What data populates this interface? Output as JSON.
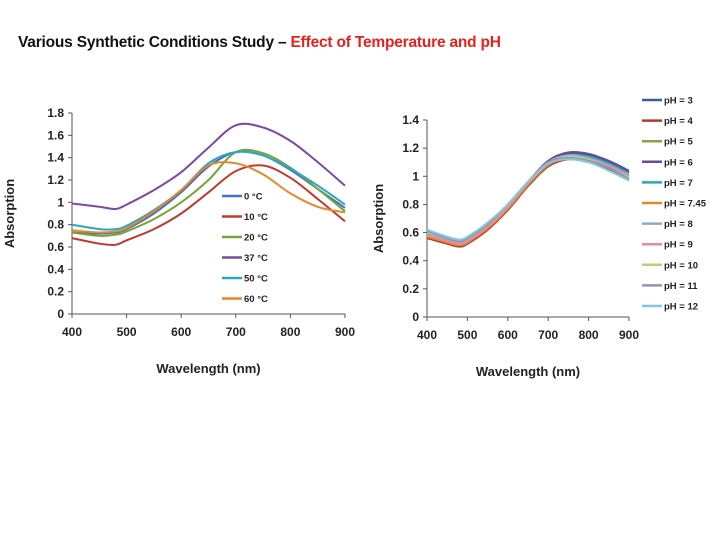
{
  "slide": {
    "title_main": "Various Synthetic Conditions Study – ",
    "title_accent": "Effect of Temperature and pH",
    "accent_color": "#e8201c"
  },
  "chart_data": [
    {
      "type": "line",
      "title": "",
      "xlabel": "Wavelength (nm)",
      "ylabel": "Absorption",
      "xlim": [
        400,
        900
      ],
      "ylim": [
        0,
        1.8
      ],
      "xticks": [
        400,
        500,
        600,
        700,
        800,
        900
      ],
      "yticks": [
        0,
        0.2,
        0.4,
        0.6,
        0.8,
        1,
        1.2,
        1.4,
        1.6,
        1.8
      ],
      "ytick_labels": [
        "0",
        "0.2",
        "0.4",
        "0.6",
        "0.8",
        "1",
        "1.2",
        "1.4",
        "1.6",
        "1.8"
      ],
      "grid": false,
      "legend_position": "center-right",
      "x": [
        400,
        450,
        480,
        500,
        550,
        600,
        650,
        700,
        750,
        800,
        850,
        900
      ],
      "series": [
        {
          "name": "0 °C",
          "color": "#4472c4",
          "values": [
            0.73,
            0.72,
            0.73,
            0.76,
            0.9,
            1.09,
            1.32,
            1.45,
            1.42,
            1.29,
            1.12,
            0.95
          ]
        },
        {
          "name": "10 °C",
          "color": "#c0392b",
          "values": [
            0.68,
            0.63,
            0.62,
            0.66,
            0.76,
            0.9,
            1.09,
            1.28,
            1.33,
            1.22,
            1.03,
            0.83
          ]
        },
        {
          "name": "20 °C",
          "color": "#77a33a",
          "values": [
            0.73,
            0.7,
            0.71,
            0.74,
            0.85,
            1.0,
            1.2,
            1.45,
            1.44,
            1.31,
            1.12,
            0.92
          ]
        },
        {
          "name": "37 °C",
          "color": "#7b4a9e",
          "values": [
            0.99,
            0.96,
            0.94,
            0.98,
            1.11,
            1.27,
            1.49,
            1.69,
            1.67,
            1.55,
            1.36,
            1.15
          ]
        },
        {
          "name": "50 °C",
          "color": "#2aa5c2",
          "values": [
            0.8,
            0.76,
            0.76,
            0.79,
            0.93,
            1.11,
            1.35,
            1.45,
            1.42,
            1.3,
            1.15,
            0.98
          ]
        },
        {
          "name": "60 °C",
          "color": "#e8862a",
          "values": [
            0.75,
            0.73,
            0.74,
            0.77,
            0.92,
            1.11,
            1.33,
            1.35,
            1.25,
            1.08,
            0.96,
            0.91
          ]
        }
      ]
    },
    {
      "type": "line",
      "title": "",
      "xlabel": "Wavelength (nm)",
      "ylabel": "Absorption",
      "xlim": [
        400,
        900
      ],
      "ylim": [
        0,
        1.4
      ],
      "xticks": [
        400,
        500,
        600,
        700,
        800,
        900
      ],
      "yticks": [
        0,
        0.2,
        0.4,
        0.6,
        0.8,
        1,
        1.2,
        1.4
      ],
      "ytick_labels": [
        "0",
        "0.2",
        "0.4",
        "0.6",
        "0.8",
        "1",
        "1.2",
        "1.4"
      ],
      "grid": false,
      "legend_position": "right",
      "x": [
        400,
        450,
        480,
        500,
        550,
        600,
        650,
        700,
        750,
        800,
        850,
        900
      ],
      "series": [
        {
          "name": "pH = 3",
          "color": "#3d5a99",
          "values": [
            0.58,
            0.54,
            0.52,
            0.54,
            0.64,
            0.78,
            0.95,
            1.1,
            1.16,
            1.15,
            1.1,
            1.03
          ]
        },
        {
          "name": "pH = 4",
          "color": "#b03a2e",
          "values": [
            0.56,
            0.52,
            0.5,
            0.52,
            0.62,
            0.76,
            0.93,
            1.07,
            1.12,
            1.1,
            1.05,
            0.98
          ]
        },
        {
          "name": "pH = 5",
          "color": "#86a83c",
          "values": [
            0.58,
            0.53,
            0.51,
            0.53,
            0.63,
            0.77,
            0.94,
            1.09,
            1.14,
            1.12,
            1.07,
            1.0
          ]
        },
        {
          "name": "pH = 6",
          "color": "#6b4a96",
          "values": [
            0.59,
            0.55,
            0.53,
            0.55,
            0.65,
            0.79,
            0.96,
            1.11,
            1.17,
            1.16,
            1.11,
            1.04
          ]
        },
        {
          "name": "pH = 7",
          "color": "#2aa8b4",
          "values": [
            0.58,
            0.54,
            0.52,
            0.54,
            0.64,
            0.78,
            0.95,
            1.1,
            1.15,
            1.14,
            1.09,
            1.02
          ]
        },
        {
          "name": "pH = 7.45",
          "color": "#e8862a",
          "values": [
            0.57,
            0.53,
            0.51,
            0.53,
            0.63,
            0.77,
            0.94,
            1.08,
            1.13,
            1.11,
            1.06,
            0.99
          ]
        },
        {
          "name": "pH = 8",
          "color": "#8ea6d6",
          "values": [
            0.59,
            0.55,
            0.53,
            0.55,
            0.65,
            0.79,
            0.96,
            1.1,
            1.15,
            1.13,
            1.08,
            1.01
          ]
        },
        {
          "name": "pH = 9",
          "color": "#e0909a",
          "values": [
            0.58,
            0.54,
            0.52,
            0.54,
            0.64,
            0.78,
            0.95,
            1.09,
            1.14,
            1.12,
            1.07,
            1.0
          ]
        },
        {
          "name": "pH = 10",
          "color": "#b6d07a",
          "values": [
            0.6,
            0.56,
            0.54,
            0.56,
            0.66,
            0.8,
            0.96,
            1.1,
            1.14,
            1.12,
            1.06,
            0.99
          ]
        },
        {
          "name": "pH = 11",
          "color": "#9a8fb3",
          "values": [
            0.61,
            0.56,
            0.54,
            0.56,
            0.66,
            0.8,
            0.96,
            1.1,
            1.13,
            1.11,
            1.06,
            0.98
          ]
        },
        {
          "name": "pH = 12",
          "color": "#7fc8e0",
          "values": [
            0.62,
            0.57,
            0.55,
            0.57,
            0.67,
            0.8,
            0.96,
            1.09,
            1.12,
            1.1,
            1.04,
            0.97
          ]
        }
      ]
    }
  ]
}
